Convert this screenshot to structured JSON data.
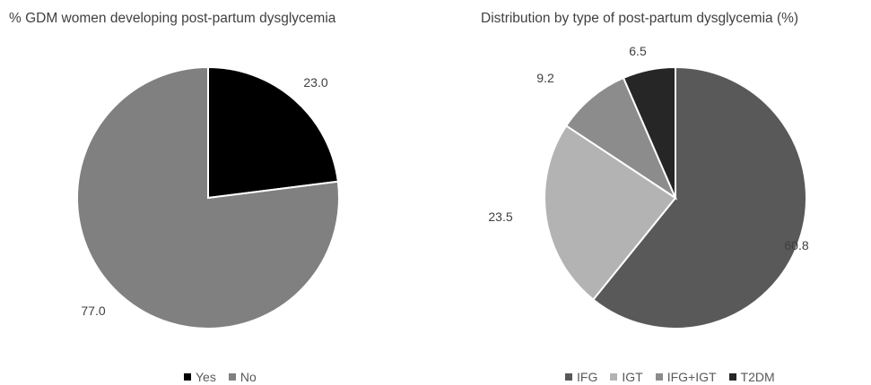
{
  "chart_data": [
    {
      "type": "pie",
      "title": "% GDM women developing post-partum dysglycemia",
      "categories": [
        "Yes",
        "No"
      ],
      "values": [
        23.0,
        77.0
      ],
      "labels": [
        "23.0",
        "77.0"
      ],
      "colors": [
        "#000000",
        "#808080"
      ],
      "legend": "bottom"
    },
    {
      "type": "pie",
      "title": "Distribution by type of post-partum dysglycemia (%)",
      "categories": [
        "IFG",
        "IGT",
        "IFG+IGT",
        "T2DM"
      ],
      "values": [
        60.8,
        23.5,
        9.2,
        6.5
      ],
      "labels": [
        "60.8",
        "23.5",
        "9.2",
        "6.5"
      ],
      "colors": [
        "#595959",
        "#b3b3b3",
        "#8c8c8c",
        "#262626"
      ],
      "legend": "bottom"
    }
  ]
}
